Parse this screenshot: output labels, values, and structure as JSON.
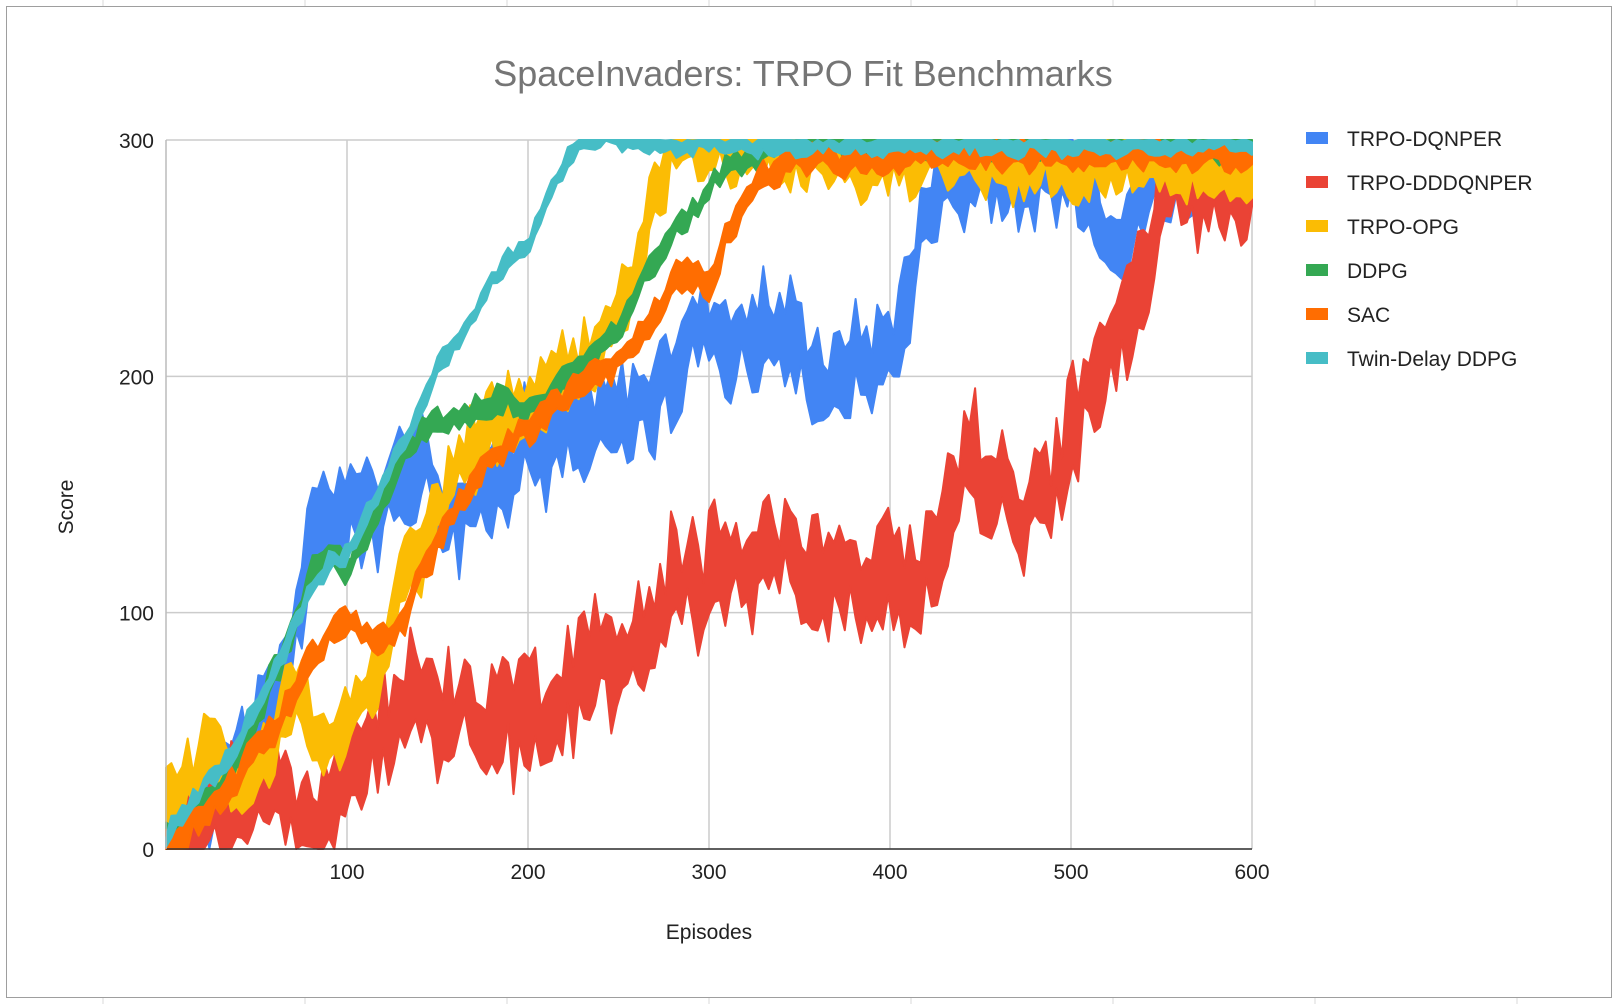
{
  "chart_data": {
    "type": "line",
    "title": "SpaceInvaders: TRPO Fit Benchmarks",
    "xlabel": "Episodes",
    "ylabel": "Score",
    "xlim": [
      0,
      600
    ],
    "ylim": [
      0,
      300
    ],
    "xticks": [
      "100",
      "200",
      "300",
      "400",
      "500",
      "600"
    ],
    "yticks": [
      "0",
      "100",
      "200",
      "300"
    ],
    "grid": true,
    "legend_position": "right",
    "series": [
      {
        "name": "TRPO-DQNPER",
        "color": "#4285f4",
        "band": 22,
        "x": [
          0,
          20,
          40,
          60,
          70,
          80,
          90,
          100,
          110,
          120,
          130,
          140,
          150,
          160,
          170,
          180,
          190,
          200,
          210,
          220,
          230,
          240,
          250,
          260,
          270,
          280,
          290,
          300,
          310,
          320,
          330,
          340,
          350,
          360,
          370,
          380,
          390,
          400,
          410,
          420,
          430,
          440,
          450,
          460,
          470,
          480,
          490,
          500,
          510,
          520,
          530,
          540,
          550,
          560,
          570,
          580,
          590,
          600
        ],
        "y": [
          5,
          22,
          38,
          62,
          90,
          125,
          145,
          140,
          150,
          140,
          160,
          170,
          150,
          140,
          150,
          155,
          165,
          175,
          170,
          180,
          175,
          180,
          182,
          188,
          190,
          200,
          218,
          225,
          215,
          215,
          220,
          218,
          215,
          200,
          195,
          210,
          205,
          215,
          230,
          275,
          285,
          280,
          290,
          285,
          290,
          280,
          288,
          285,
          280,
          265,
          262,
          280,
          285,
          290,
          290,
          290,
          292,
          290
        ]
      },
      {
        "name": "TRPO-DDDQNPER",
        "color": "#ea4335",
        "band": 26,
        "x": [
          0,
          20,
          40,
          60,
          70,
          80,
          90,
          100,
          120,
          140,
          150,
          160,
          180,
          200,
          220,
          240,
          260,
          270,
          280,
          290,
          300,
          320,
          340,
          360,
          380,
          400,
          410,
          420,
          440,
          460,
          470,
          480,
          490,
          500,
          510,
          520,
          530,
          540,
          550,
          560,
          570,
          580,
          590,
          600
        ],
        "y": [
          0,
          5,
          20,
          25,
          18,
          8,
          20,
          30,
          50,
          65,
          60,
          60,
          55,
          55,
          65,
          80,
          90,
          80,
          125,
          110,
          115,
          120,
          130,
          115,
          110,
          115,
          110,
          120,
          160,
          160,
          140,
          145,
          155,
          170,
          200,
          215,
          220,
          240,
          275,
          285,
          285,
          285,
          285,
          285
        ]
      },
      {
        "name": "TRPO-OPG",
        "color": "#fbbc04",
        "band": 16,
        "x": [
          0,
          10,
          20,
          30,
          40,
          50,
          60,
          70,
          80,
          90,
          100,
          110,
          120,
          130,
          140,
          150,
          160,
          170,
          180,
          190,
          200,
          210,
          220,
          230,
          240,
          250,
          260,
          270,
          280,
          290,
          300,
          320,
          340,
          360,
          380,
          400,
          420,
          440,
          460,
          480,
          500,
          520,
          540,
          560,
          580,
          600
        ],
        "y": [
          15,
          28,
          38,
          45,
          25,
          30,
          45,
          70,
          50,
          45,
          55,
          65,
          85,
          115,
          125,
          140,
          160,
          170,
          180,
          185,
          185,
          195,
          200,
          205,
          215,
          225,
          245,
          280,
          295,
          298,
          298,
          295,
          295,
          292,
          290,
          292,
          295,
          292,
          290,
          292,
          290,
          292,
          290,
          290,
          288,
          285
        ]
      },
      {
        "name": "DDPG",
        "color": "#34a853",
        "band": 7,
        "x": [
          0,
          20,
          40,
          50,
          60,
          70,
          80,
          90,
          100,
          110,
          120,
          130,
          140,
          150,
          160,
          170,
          180,
          190,
          200,
          210,
          220,
          230,
          240,
          250,
          260,
          270,
          280,
          290,
          300,
          310,
          320,
          330,
          340,
          360,
          380,
          400,
          420,
          440,
          460,
          480,
          500,
          520,
          540,
          560,
          580,
          600
        ],
        "y": [
          5,
          20,
          35,
          55,
          75,
          90,
          115,
          125,
          120,
          130,
          150,
          165,
          175,
          180,
          182,
          185,
          188,
          190,
          185,
          190,
          200,
          205,
          210,
          220,
          235,
          250,
          262,
          268,
          280,
          288,
          292,
          295,
          298,
          298,
          298,
          298,
          298,
          298,
          298,
          298,
          298,
          298,
          298,
          298,
          298,
          298
        ]
      },
      {
        "name": "SAC",
        "color": "#ff6d01",
        "band": 7,
        "x": [
          0,
          20,
          40,
          50,
          60,
          70,
          80,
          90,
          100,
          110,
          120,
          130,
          140,
          150,
          160,
          170,
          180,
          190,
          200,
          210,
          220,
          230,
          240,
          250,
          260,
          270,
          280,
          290,
          300,
          310,
          320,
          330,
          340,
          360,
          380,
          400,
          420,
          440,
          460,
          480,
          500,
          520,
          540,
          560,
          580,
          600
        ],
        "y": [
          0,
          15,
          30,
          45,
          50,
          65,
          80,
          90,
          95,
          92,
          90,
          95,
          115,
          130,
          145,
          155,
          165,
          172,
          178,
          185,
          190,
          198,
          200,
          205,
          215,
          225,
          240,
          245,
          235,
          260,
          275,
          285,
          290,
          292,
          290,
          292,
          295,
          295,
          293,
          295,
          295,
          293,
          295,
          293,
          295,
          293
        ]
      },
      {
        "name": "Twin-Delay DDPG",
        "color": "#46bdc6",
        "band": 5,
        "x": [
          0,
          20,
          40,
          60,
          80,
          90,
          100,
          110,
          120,
          130,
          140,
          150,
          160,
          170,
          180,
          190,
          200,
          210,
          220,
          230,
          240,
          260,
          280,
          300,
          320,
          340,
          360,
          380,
          400,
          420,
          440,
          460,
          480,
          500,
          520,
          540,
          560,
          580,
          600
        ],
        "y": [
          5,
          25,
          45,
          75,
          110,
          120,
          125,
          140,
          155,
          170,
          185,
          205,
          215,
          225,
          240,
          250,
          255,
          275,
          290,
          300,
          300,
          300,
          298,
          298,
          298,
          298,
          298,
          298,
          298,
          298,
          298,
          298,
          298,
          298,
          298,
          298,
          298,
          298,
          298
        ]
      }
    ]
  }
}
